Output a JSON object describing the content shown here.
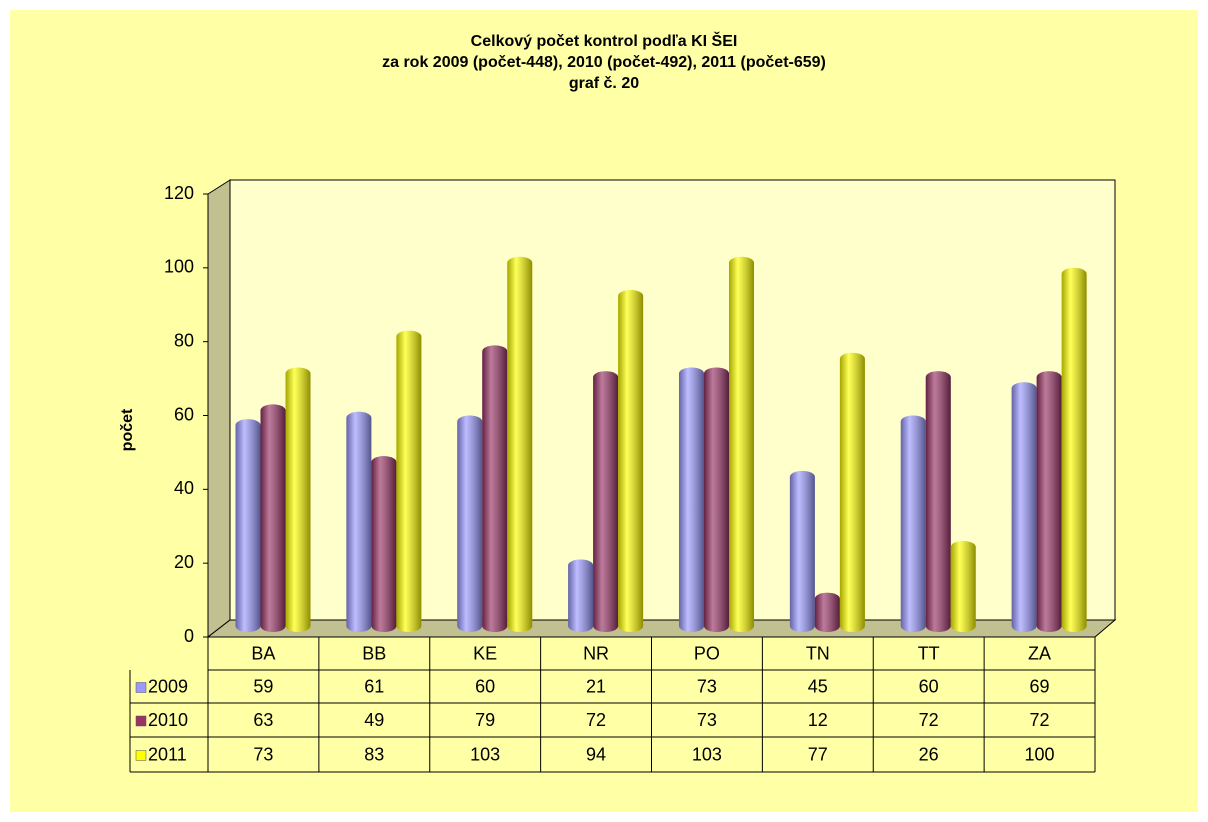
{
  "chart_data": {
    "type": "bar",
    "title": [
      "Celkový počet kontrol podľa KI ŠEI",
      "za rok  2009 (počet-448), 2010 (počet-492), 2011 (počet-659)",
      "graf č. 20"
    ],
    "y_label": "počet",
    "categories": [
      "BA",
      "BB",
      "KE",
      "NR",
      "PO",
      "TN",
      "TT",
      "ZA"
    ],
    "series": [
      {
        "name": "2009",
        "color": "#9999ff",
        "values": [
          59,
          61,
          60,
          21,
          73,
          45,
          60,
          69
        ]
      },
      {
        "name": "2010",
        "color": "#993366",
        "values": [
          63,
          49,
          79,
          72,
          73,
          12,
          72,
          72
        ]
      },
      {
        "name": "2011",
        "color": "#ffff00",
        "values": [
          73,
          83,
          103,
          94,
          103,
          77,
          26,
          100
        ]
      }
    ],
    "ylim": [
      0,
      120
    ],
    "yticks": [
      0,
      20,
      40,
      60,
      80,
      100,
      120
    ]
  }
}
